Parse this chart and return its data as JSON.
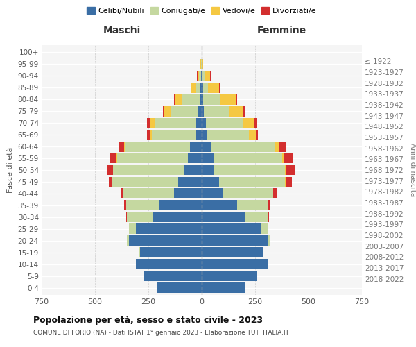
{
  "age_groups": [
    "0-4",
    "5-9",
    "10-14",
    "15-19",
    "20-24",
    "25-29",
    "30-34",
    "35-39",
    "40-44",
    "45-49",
    "50-54",
    "55-59",
    "60-64",
    "65-69",
    "70-74",
    "75-79",
    "80-84",
    "85-89",
    "90-94",
    "95-99",
    "100+"
  ],
  "birth_years": [
    "2018-2022",
    "2013-2017",
    "2008-2012",
    "2003-2007",
    "1998-2002",
    "1993-1997",
    "1988-1992",
    "1983-1987",
    "1978-1982",
    "1973-1977",
    "1968-1972",
    "1963-1967",
    "1958-1962",
    "1953-1957",
    "1948-1952",
    "1943-1947",
    "1938-1942",
    "1933-1937",
    "1928-1932",
    "1923-1927",
    "≤ 1922"
  ],
  "males": {
    "celibe": [
      210,
      270,
      310,
      290,
      340,
      310,
      230,
      200,
      130,
      110,
      80,
      65,
      55,
      30,
      25,
      15,
      10,
      5,
      3,
      1,
      0
    ],
    "coniugato": [
      0,
      0,
      0,
      2,
      10,
      30,
      120,
      155,
      240,
      310,
      335,
      330,
      305,
      205,
      195,
      130,
      80,
      25,
      10,
      2,
      0
    ],
    "vedovo": [
      0,
      0,
      0,
      0,
      0,
      0,
      0,
      0,
      0,
      1,
      2,
      3,
      5,
      10,
      25,
      30,
      35,
      20,
      8,
      2,
      0
    ],
    "divorziato": [
      0,
      0,
      0,
      0,
      0,
      0,
      5,
      8,
      10,
      15,
      25,
      30,
      20,
      10,
      12,
      8,
      5,
      2,
      1,
      0,
      0
    ]
  },
  "females": {
    "nubile": [
      200,
      260,
      310,
      285,
      310,
      280,
      200,
      165,
      100,
      80,
      60,
      55,
      45,
      22,
      18,
      10,
      8,
      5,
      3,
      1,
      0
    ],
    "coniugata": [
      0,
      0,
      0,
      2,
      10,
      30,
      110,
      145,
      235,
      310,
      330,
      320,
      300,
      200,
      175,
      120,
      75,
      25,
      12,
      2,
      0
    ],
    "vedova": [
      0,
      0,
      0,
      0,
      0,
      0,
      0,
      0,
      1,
      3,
      5,
      8,
      15,
      30,
      50,
      65,
      75,
      50,
      25,
      5,
      2
    ],
    "divorziata": [
      0,
      0,
      0,
      0,
      0,
      2,
      5,
      10,
      18,
      30,
      40,
      45,
      35,
      12,
      15,
      10,
      8,
      3,
      1,
      0,
      0
    ]
  },
  "colors": {
    "celibe_nubile": "#3a6ea5",
    "coniugato": "#c5d8a0",
    "vedovo": "#f5c842",
    "divorziato": "#d32e2e"
  },
  "xlim": 750,
  "title": "Popolazione per età, sesso e stato civile - 2023",
  "subtitle": "COMUNE DI FORIO (NA) - Dati ISTAT 1° gennaio 2023 - Elaborazione TUTTITALIA.IT",
  "xlabel_left": "Maschi",
  "xlabel_right": "Femmine",
  "ylabel": "Fasce di età",
  "ylabel_right": "Anni di nascita",
  "legend_labels": [
    "Celibi/Nubili",
    "Coniugati/e",
    "Vedovi/e",
    "Divorziati/e"
  ],
  "background_color": "#f5f5f5"
}
